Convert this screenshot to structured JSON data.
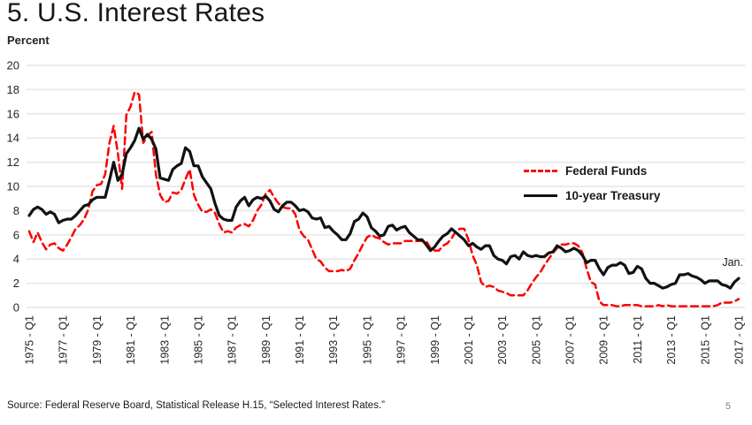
{
  "slide": {
    "title": "5. U.S. Interest Rates",
    "page_number": "5",
    "source": "Source: Federal Reserve Board, Statistical Release H.15, “Selected Interest Rates.”"
  },
  "colors": {
    "federal_funds_red": "#fb0000",
    "treasury_black": "#111111",
    "gridline_gray": "#ebebeb",
    "axis_text": "#262626",
    "page_number_gray": "#808080"
  },
  "chart_data": {
    "type": "line",
    "title": "5. U.S. Interest Rates",
    "ylabel": "Percent",
    "xlabel": "",
    "ylim": [
      0,
      20
    ],
    "ytick_step": 2,
    "grid": "horizontal-only",
    "legend_position": "right-middle",
    "x_unit": "quarterly",
    "x_start": "1975 - Q1",
    "x_end": "2017 - Q1",
    "xtick_quarter_interval": 8,
    "xtick_labels": [
      "1975 - Q1",
      "1977 - Q1",
      "1979 - Q1",
      "1981 - Q1",
      "1983 - Q1",
      "1985 - Q1",
      "1987 - Q1",
      "1989 - Q1",
      "1991 - Q1",
      "1993 - Q1",
      "1995 - Q1",
      "1997 - Q1",
      "1999 - Q1",
      "2001 - Q1",
      "2003 - Q1",
      "2005 - Q1",
      "2007 - Q1",
      "2009 - Q1",
      "2011 - Q1",
      "2013 - Q1",
      "2015 - Q1",
      "2017 - Q1"
    ],
    "annotation": {
      "text": "Jan.",
      "attached_to": "last data point (January 2017)"
    },
    "series": [
      {
        "name": "Federal Funds",
        "style": "dashed",
        "color": "#fb0000",
        "values": [
          6.3,
          5.4,
          6.2,
          5.4,
          4.8,
          5.2,
          5.3,
          4.9,
          4.7,
          5.2,
          5.8,
          6.5,
          6.8,
          7.3,
          8.1,
          9.6,
          10.1,
          10.2,
          11.0,
          13.6,
          15.0,
          12.7,
          9.8,
          15.9,
          16.6,
          17.8,
          17.6,
          13.6,
          14.2,
          14.5,
          11.0,
          9.3,
          8.7,
          8.8,
          9.5,
          9.4,
          9.7,
          10.6,
          11.4,
          9.3,
          8.5,
          7.9,
          7.9,
          8.1,
          7.8,
          6.9,
          6.2,
          6.3,
          6.2,
          6.6,
          6.8,
          6.9,
          6.7,
          7.2,
          8.0,
          8.5,
          9.4,
          9.7,
          9.1,
          8.6,
          8.3,
          8.2,
          8.2,
          7.7,
          6.4,
          5.9,
          5.6,
          4.8,
          4.0,
          3.8,
          3.3,
          3.0,
          3.0,
          3.0,
          3.1,
          3.0,
          3.2,
          3.9,
          4.5,
          5.2,
          5.8,
          6.0,
          5.8,
          5.7,
          5.4,
          5.2,
          5.3,
          5.3,
          5.3,
          5.5,
          5.5,
          5.5,
          5.5,
          5.5,
          5.5,
          4.9,
          4.7,
          4.7,
          5.1,
          5.3,
          5.7,
          6.3,
          6.5,
          6.5,
          5.6,
          4.3,
          3.5,
          2.1,
          1.7,
          1.8,
          1.7,
          1.4,
          1.3,
          1.2,
          1.0,
          1.0,
          1.0,
          1.0,
          1.4,
          2.0,
          2.5,
          2.9,
          3.5,
          4.0,
          4.5,
          4.9,
          5.2,
          5.2,
          5.3,
          5.3,
          5.1,
          4.5,
          3.2,
          2.1,
          1.9,
          0.5,
          0.2,
          0.2,
          0.2,
          0.1,
          0.1,
          0.2,
          0.2,
          0.2,
          0.2,
          0.1,
          0.1,
          0.1,
          0.1,
          0.2,
          0.1,
          0.2,
          0.1,
          0.1,
          0.1,
          0.1,
          0.1,
          0.1,
          0.1,
          0.1,
          0.1,
          0.1,
          0.1,
          0.2,
          0.4,
          0.4,
          0.4,
          0.5,
          0.7
        ]
      },
      {
        "name": "10-year Treasury",
        "style": "solid",
        "color": "#111111",
        "values": [
          7.6,
          8.1,
          8.3,
          8.1,
          7.7,
          7.9,
          7.7,
          7.0,
          7.2,
          7.3,
          7.3,
          7.6,
          8.0,
          8.4,
          8.5,
          8.9,
          9.1,
          9.1,
          9.1,
          10.5,
          12.0,
          10.5,
          11.0,
          12.7,
          13.2,
          13.8,
          14.8,
          13.9,
          14.3,
          13.9,
          13.1,
          10.7,
          10.6,
          10.5,
          11.4,
          11.7,
          11.9,
          13.2,
          12.9,
          11.7,
          11.7,
          10.8,
          10.3,
          9.8,
          8.6,
          7.6,
          7.3,
          7.2,
          7.2,
          8.3,
          8.8,
          9.1,
          8.4,
          8.9,
          9.1,
          9.0,
          9.2,
          8.8,
          8.1,
          7.9,
          8.4,
          8.7,
          8.7,
          8.4,
          8.0,
          8.1,
          7.9,
          7.4,
          7.3,
          7.4,
          6.6,
          6.7,
          6.3,
          6.0,
          5.6,
          5.6,
          6.1,
          7.1,
          7.3,
          7.8,
          7.5,
          6.6,
          6.3,
          5.9,
          6.0,
          6.7,
          6.8,
          6.4,
          6.6,
          6.7,
          6.2,
          5.9,
          5.6,
          5.6,
          5.2,
          4.7,
          5.0,
          5.5,
          5.9,
          6.1,
          6.5,
          6.2,
          5.9,
          5.6,
          5.1,
          5.3,
          5.0,
          4.8,
          5.1,
          5.1,
          4.3,
          4.0,
          3.9,
          3.6,
          4.2,
          4.3,
          4.0,
          4.6,
          4.3,
          4.2,
          4.3,
          4.2,
          4.2,
          4.5,
          4.6,
          5.1,
          4.9,
          4.6,
          4.7,
          4.9,
          4.7,
          4.3,
          3.7,
          3.9,
          3.9,
          3.2,
          2.7,
          3.3,
          3.5,
          3.5,
          3.7,
          3.5,
          2.8,
          2.9,
          3.4,
          3.2,
          2.4,
          2.0,
          2.0,
          1.8,
          1.6,
          1.7,
          1.9,
          2.0,
          2.7,
          2.7,
          2.8,
          2.6,
          2.5,
          2.3,
          2.0,
          2.2,
          2.2,
          2.2,
          1.9,
          1.8,
          1.6,
          2.1,
          2.4
        ]
      }
    ]
  }
}
